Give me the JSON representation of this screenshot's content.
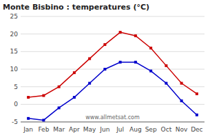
{
  "chart_data": {
    "type": "line",
    "title": "Monte Bisbino : temperatures (°C)",
    "categories": [
      "Jan",
      "Feb",
      "Mar",
      "Apr",
      "May",
      "Jun",
      "Jul",
      "Aug",
      "Sep",
      "Oct",
      "Nov",
      "Dec"
    ],
    "series": [
      {
        "color": "#cc0000",
        "marker": "square",
        "values": [
          2,
          2.5,
          5,
          9,
          13,
          17,
          20.5,
          19.5,
          16,
          11,
          6,
          3
        ]
      },
      {
        "color": "#0000cc",
        "marker": "square",
        "values": [
          -4,
          -4.5,
          -1,
          2,
          6,
          10,
          12,
          12,
          9.5,
          6,
          1,
          -3
        ]
      }
    ],
    "ylim": [
      -5,
      25
    ],
    "yticks": [
      -5,
      0,
      5,
      10,
      15,
      20,
      25
    ],
    "grid": true,
    "annotations": [
      "www.allmetsat.com"
    ]
  }
}
